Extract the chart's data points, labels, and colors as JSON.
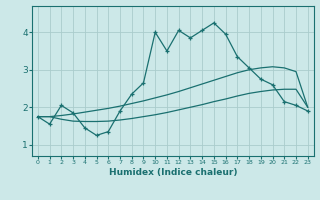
{
  "xlabel": "Humidex (Indice chaleur)",
  "bg_color": "#cce8e8",
  "grid_color": "#aacccc",
  "line_color": "#1a7070",
  "x_values": [
    0,
    1,
    2,
    3,
    4,
    5,
    6,
    7,
    8,
    9,
    10,
    11,
    12,
    13,
    14,
    15,
    16,
    17,
    18,
    19,
    20,
    21,
    22,
    23
  ],
  "ylim": [
    0.7,
    4.7
  ],
  "xlim": [
    -0.5,
    23.5
  ],
  "series_top": [
    1.75,
    1.75,
    1.78,
    1.82,
    1.87,
    1.92,
    1.97,
    2.03,
    2.1,
    2.17,
    2.25,
    2.33,
    2.42,
    2.52,
    2.62,
    2.72,
    2.82,
    2.92,
    3.0,
    3.05,
    3.08,
    3.05,
    2.95,
    2.0
  ],
  "series_bot": [
    1.75,
    1.75,
    1.68,
    1.63,
    1.62,
    1.62,
    1.63,
    1.66,
    1.7,
    1.75,
    1.8,
    1.86,
    1.93,
    2.0,
    2.07,
    2.15,
    2.22,
    2.3,
    2.37,
    2.42,
    2.46,
    2.48,
    2.48,
    2.0
  ],
  "series_main": [
    1.75,
    1.55,
    2.05,
    1.85,
    1.45,
    1.25,
    1.35,
    1.9,
    2.35,
    2.65,
    4.0,
    3.5,
    4.05,
    3.85,
    4.05,
    4.25,
    3.95,
    3.35,
    3.05,
    2.75,
    2.6,
    2.15,
    2.05,
    1.9
  ],
  "yticks": [
    1,
    2,
    3,
    4
  ],
  "xticks": [
    0,
    1,
    2,
    3,
    4,
    5,
    6,
    7,
    8,
    9,
    10,
    11,
    12,
    13,
    14,
    15,
    16,
    17,
    18,
    19,
    20,
    21,
    22,
    23
  ],
  "figsize": [
    3.2,
    2.0
  ],
  "dpi": 100
}
